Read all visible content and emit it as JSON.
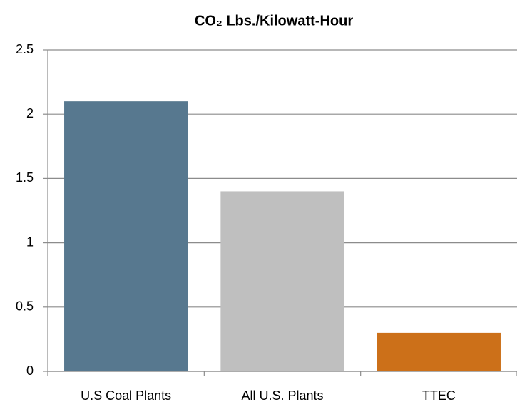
{
  "chart_data": {
    "type": "bar",
    "title": "CO₂ Lbs./Kilowatt-Hour",
    "categories": [
      "U.S Coal Plants",
      "All U.S. Plants",
      "TTEC"
    ],
    "values": [
      2.1,
      1.4,
      0.3
    ],
    "colors": [
      "#57788f",
      "#bfbfbf",
      "#cc7019"
    ],
    "ylim": [
      0,
      2.5
    ],
    "yticks": [
      0,
      0.5,
      1,
      1.5,
      2,
      2.5
    ],
    "grid": true
  }
}
